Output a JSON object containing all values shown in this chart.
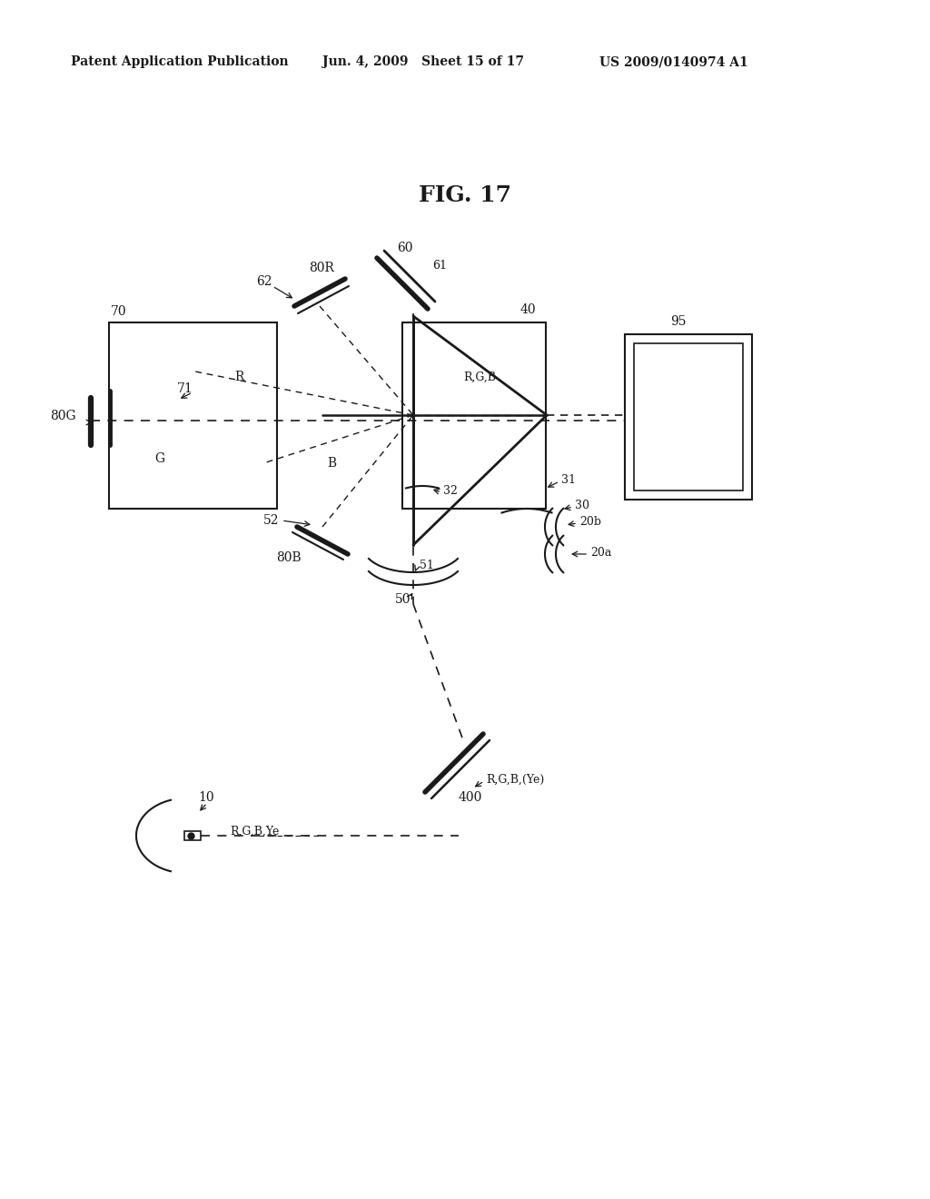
{
  "bg_color": "#ffffff",
  "title": "FIG. 17",
  "header_left": "Patent Application Publication",
  "header_mid": "Jun. 4, 2009   Sheet 15 of 17",
  "header_right": "US 2009/0140974 A1",
  "fig_width": 10.24,
  "fig_height": 13.2,
  "dpi": 100
}
